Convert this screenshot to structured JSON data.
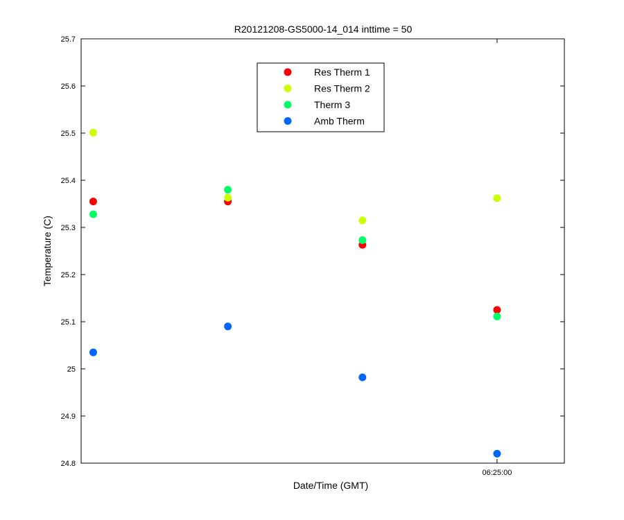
{
  "chart_data": {
    "type": "scatter",
    "title": "R20121208-GS5000-14_014 inttime = 50",
    "xlabel": "Date/Time (GMT)",
    "ylabel": "Temperature (C)",
    "ylim": [
      24.8,
      25.7
    ],
    "yticks": [
      "24.8",
      "24.9",
      "25",
      "25.1",
      "25.2",
      "25.3",
      "25.4",
      "25.5",
      "25.6",
      "25.7"
    ],
    "xlim": [
      0.91,
      4.5
    ],
    "xticks": [
      {
        "x": 4,
        "label": "06:25:00"
      }
    ],
    "x": [
      1,
      2,
      3,
      4
    ],
    "grid": false,
    "legend_position": "top-center",
    "series": [
      {
        "name": "Res Therm 1",
        "color": "#ff0000",
        "values": [
          25.355,
          25.355,
          25.263,
          25.125
        ]
      },
      {
        "name": "Res Therm 2",
        "color": "#ccff00",
        "values": [
          25.501,
          25.363,
          25.315,
          25.362
        ]
      },
      {
        "name": "Therm 3",
        "color": "#00ff66",
        "values": [
          25.328,
          25.38,
          25.273,
          25.111
        ]
      },
      {
        "name": "Amb Therm",
        "color": "#0066ff",
        "values": [
          25.035,
          25.09,
          24.982,
          24.82
        ]
      }
    ]
  }
}
